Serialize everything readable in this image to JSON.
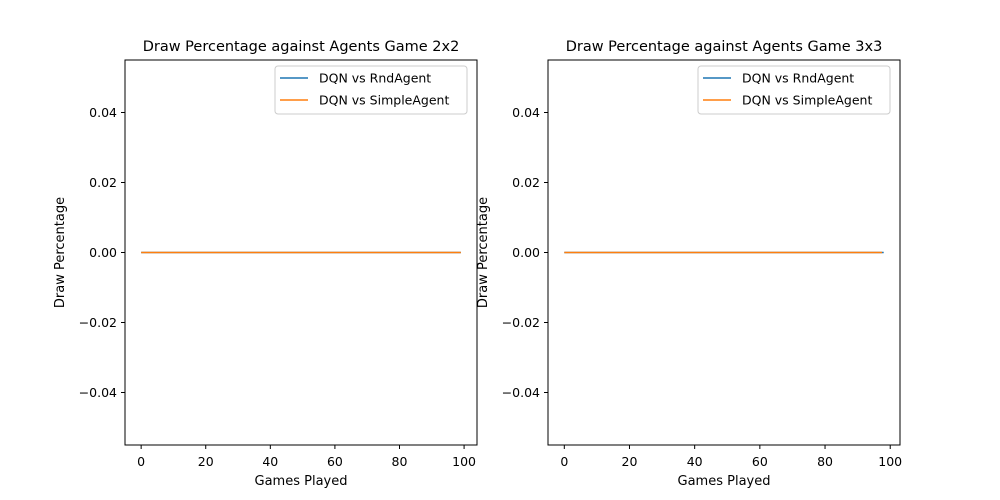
{
  "chart_data": [
    {
      "type": "line",
      "title": "Draw Percentage against Agents Game 2x2",
      "xlabel": "Games Played",
      "ylabel": "Draw Percentage",
      "xlim": [
        -5,
        104
      ],
      "ylim": [
        -0.055,
        0.055
      ],
      "xticks": [
        0,
        20,
        40,
        60,
        80,
        100
      ],
      "yticks": [
        -0.04,
        -0.02,
        0.0,
        0.02,
        0.04
      ],
      "xtick_labels": [
        "0",
        "20",
        "40",
        "60",
        "80",
        "100"
      ],
      "ytick_labels": [
        "−0.04",
        "−0.02",
        "0.00",
        "0.02",
        "0.04"
      ],
      "legend_position": "top-right",
      "grid": false,
      "series": [
        {
          "name": "DQN vs RndAgent",
          "color": "#1f77b4",
          "x": [
            0,
            99
          ],
          "y": [
            0,
            0
          ]
        },
        {
          "name": "DQN vs SimpleAgent",
          "color": "#ff7f0e",
          "x": [
            0,
            99
          ],
          "y": [
            0,
            0
          ]
        }
      ]
    },
    {
      "type": "line",
      "title": "Draw Percentage against Agents Game 3x3",
      "xlabel": "Games Played",
      "ylabel": "Draw Percentage",
      "xlim": [
        -5,
        103
      ],
      "ylim": [
        -0.055,
        0.055
      ],
      "xticks": [
        0,
        20,
        40,
        60,
        80,
        100
      ],
      "yticks": [
        -0.04,
        -0.02,
        0.0,
        0.02,
        0.04
      ],
      "xtick_labels": [
        "0",
        "20",
        "40",
        "60",
        "80",
        "100"
      ],
      "ytick_labels": [
        "−0.04",
        "−0.02",
        "0.00",
        "0.02",
        "0.04"
      ],
      "legend_position": "top-right",
      "grid": false,
      "series": [
        {
          "name": "DQN vs RndAgent",
          "color": "#1f77b4",
          "x": [
            0,
            98
          ],
          "y": [
            0,
            0
          ]
        },
        {
          "name": "DQN vs SimpleAgent",
          "color": "#ff7f0e",
          "x": [
            0,
            97.5
          ],
          "y": [
            0,
            0
          ]
        }
      ]
    }
  ]
}
